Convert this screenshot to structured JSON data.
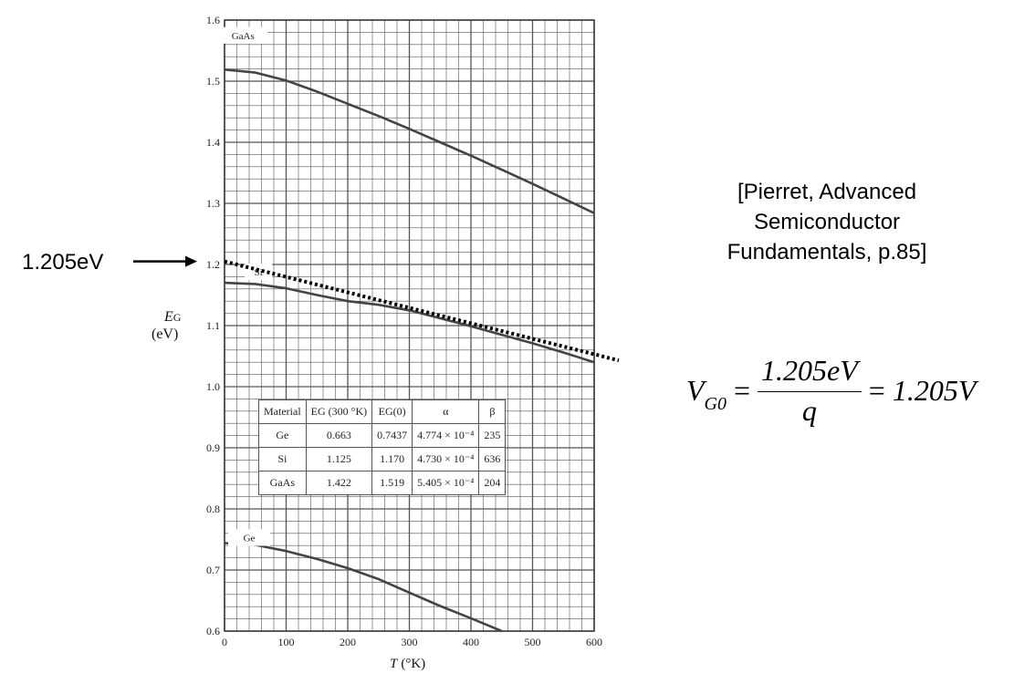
{
  "chart_data": {
    "type": "line",
    "xlabel_var": "T",
    "xlabel_unit": "(°K)",
    "ylabel_var": "E",
    "ylabel_sub": "G",
    "ylabel_unit": "(eV)",
    "xlim": [
      0,
      600
    ],
    "ylim": [
      0.6,
      1.6
    ],
    "grid": true,
    "x_ticks": [
      "0",
      "100",
      "200",
      "300",
      "400",
      "500",
      "600"
    ],
    "y_ticks": [
      "0.6",
      "0.7",
      "0.8",
      "0.9",
      "1.0",
      "1.1",
      "1.2",
      "1.3",
      "1.4",
      "1.5",
      "1.6"
    ],
    "series": [
      {
        "name": "GaAs",
        "x": [
          0,
          50,
          100,
          150,
          200,
          250,
          300,
          350,
          400,
          450,
          500,
          550,
          600
        ],
        "y": [
          1.519,
          1.514,
          1.501,
          1.483,
          1.463,
          1.443,
          1.422,
          1.4,
          1.378,
          1.355,
          1.332,
          1.308,
          1.284
        ]
      },
      {
        "name": "Si",
        "x": [
          0,
          50,
          100,
          150,
          200,
          250,
          300,
          350,
          400,
          450,
          500,
          550,
          600
        ],
        "y": [
          1.17,
          1.168,
          1.161,
          1.15,
          1.14,
          1.134,
          1.125,
          1.112,
          1.099,
          1.085,
          1.071,
          1.056,
          1.04
        ]
      },
      {
        "name": "Ge",
        "x": [
          0,
          50,
          100,
          150,
          200,
          250,
          300,
          350,
          400,
          450
        ],
        "y": [
          0.744,
          0.741,
          0.731,
          0.718,
          0.703,
          0.685,
          0.663,
          0.641,
          0.621,
          0.6
        ]
      }
    ],
    "extrapolation": {
      "x": [
        0,
        640
      ],
      "y": [
        1.205,
        1.043
      ]
    },
    "table": {
      "headers": [
        "Material",
        "EG (300 °K)",
        "EG(0)",
        "α",
        "β"
      ],
      "rows": [
        [
          "Ge",
          "0.663",
          "0.7437",
          "4.774 × 10⁻⁴",
          "235"
        ],
        [
          "Si",
          "1.125",
          "1.170",
          "4.730 × 10⁻⁴",
          "636"
        ],
        [
          "GaAs",
          "1.422",
          "1.519",
          "5.405 × 10⁻⁴",
          "204"
        ]
      ]
    }
  },
  "annotation": {
    "label": "1.205eV"
  },
  "citation": {
    "lines": [
      "[Pierret, Advanced",
      "Semiconductor",
      "Fundamentals, p.85]"
    ]
  },
  "formula": {
    "lhs": "V",
    "lhs_sub": "G0",
    "eq": "=",
    "numerator": "1.205eV",
    "denominator": "q",
    "rhs": "1.205V"
  },
  "colors": {
    "curve": "#444444",
    "grid": "#555555",
    "annotation": "#000000"
  }
}
